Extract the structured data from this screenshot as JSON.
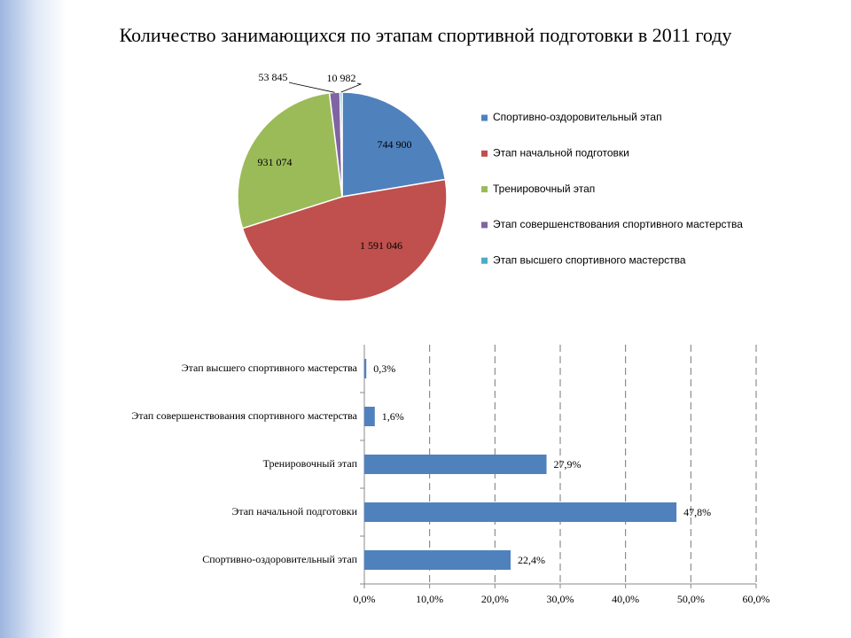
{
  "chart_data": [
    {
      "type": "pie",
      "title": "Количество занимающихся по этапам спортивной подготовки в 2011 году",
      "categories": [
        "Спортивно-оздоровительный этап",
        "Этап начальной подготовки",
        "Тренировочный этап",
        "Этап совершенствования спортивного мастерства",
        "Этап высшего спортивного мастерства"
      ],
      "values": [
        744900,
        1591046,
        931074,
        53845,
        10982
      ],
      "value_labels": [
        "744 900",
        "1 591 046",
        "931 074",
        "53 845",
        "10 982"
      ],
      "colors": [
        "#4f81bd",
        "#c0504d",
        "#9bbb59",
        "#8064a2",
        "#4bacc6"
      ],
      "legend": "right"
    },
    {
      "type": "barh",
      "categories": [
        "Спортивно-оздоровительный этап",
        "Этап начальной подготовки",
        "Тренировочный этап",
        "Этап совершенствования спортивного мастерства",
        "Этап высшего спортивного мастерства"
      ],
      "values": [
        22.4,
        47.8,
        27.9,
        1.6,
        0.3
      ],
      "value_labels": [
        "22,4%",
        "47,8%",
        "27,9%",
        "1,6%",
        "0,3%"
      ],
      "color": "#4f81bd",
      "xlim": [
        0,
        60
      ],
      "xticks": [
        {
          "value": 0,
          "label": "0,0%"
        },
        {
          "value": 10,
          "label": "10,0%"
        },
        {
          "value": 20,
          "label": "20,0%"
        },
        {
          "value": 30,
          "label": "30,0%"
        },
        {
          "value": 40,
          "label": "40,0%"
        },
        {
          "value": 50,
          "label": "50,0%"
        },
        {
          "value": 60,
          "label": "60,0%"
        }
      ],
      "grid": true
    }
  ]
}
